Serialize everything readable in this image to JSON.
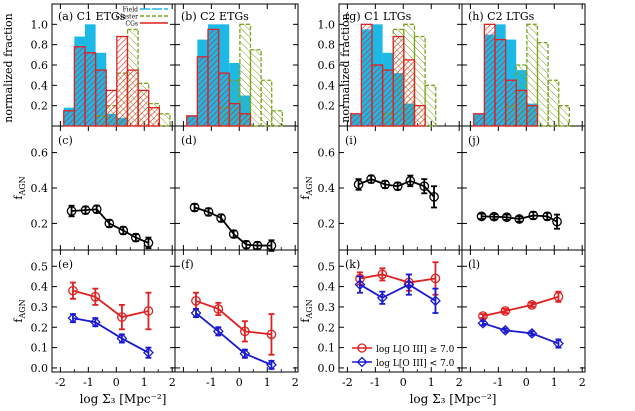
{
  "figure": {
    "left_title": "normalized fraction",
    "fagn_label": "f_AGN",
    "x_label_left": "log Σ₃  [Mpc⁻²]",
    "x_label_right": "log Σ₃  [Mpc⁻²]",
    "x_ticks": [
      "-2",
      "-1",
      "0",
      "1",
      "2"
    ],
    "hist_yticks": [
      "0.2",
      "0.4",
      "0.6",
      "0.8",
      "1.0"
    ],
    "mid_yticks": [
      "0.2",
      "0.4",
      "0.6"
    ],
    "bot_yticks": [
      "0.0",
      "0.1",
      "0.2",
      "0.3",
      "0.4",
      "0.5"
    ],
    "colors": {
      "field": "#1cb8e6",
      "cluster": "#7aa31c",
      "cgs": "#e02020",
      "red": "#e02020",
      "blue": "#1a1ad0",
      "black": "#000000"
    },
    "legend_hist": {
      "field": "Field",
      "cluster": "Cluster",
      "cgs": "CGs"
    },
    "legend_agn": {
      "high": "log L[O III] ≥ 7.0",
      "low": "log L[O III] < 7.0"
    }
  },
  "chart_data": [
    {
      "panel": "a",
      "label": "(a) C1 ETGs",
      "type": "bar",
      "bin_edges": [
        -1.88,
        -1.5,
        -1.12,
        -0.74,
        -0.36,
        0.02,
        0.4,
        0.78,
        1.16,
        1.54,
        1.92
      ],
      "series": [
        {
          "name": "Field",
          "values": [
            0.18,
            0.88,
            1.0,
            0.72,
            0.12,
            0.08,
            0.0,
            0.0,
            0.0,
            0.0
          ]
        },
        {
          "name": "Cluster",
          "values": [
            0.0,
            0.0,
            0.0,
            0.1,
            0.2,
            0.52,
            0.95,
            0.42,
            0.22,
            0.12
          ]
        },
        {
          "name": "CGs",
          "values": [
            0.15,
            0.78,
            0.72,
            0.55,
            0.35,
            0.88,
            0.55,
            0.35,
            0.18,
            0.0
          ]
        }
      ],
      "ylim": [
        0,
        1.2
      ]
    },
    {
      "panel": "b",
      "label": "(b) C2 ETGs",
      "type": "bar",
      "bin_edges": [
        -1.88,
        -1.5,
        -1.12,
        -0.74,
        -0.36,
        0.02,
        0.4,
        0.78,
        1.16,
        1.54,
        1.92
      ],
      "series": [
        {
          "name": "Field",
          "values": [
            0.1,
            0.85,
            1.0,
            1.0,
            0.62,
            0.3,
            0.0,
            0.0,
            0.0,
            0.0
          ]
        },
        {
          "name": "Cluster",
          "values": [
            0.0,
            0.0,
            0.0,
            0.18,
            0.45,
            1.0,
            0.75,
            0.45,
            0.15,
            0.0
          ]
        },
        {
          "name": "CGs",
          "values": [
            0.1,
            0.68,
            0.95,
            0.52,
            0.22,
            0.12,
            0.0,
            0.0,
            0.0,
            0.0
          ]
        }
      ],
      "ylim": [
        0,
        1.2
      ]
    },
    {
      "panel": "g",
      "label": "(g) C1 LTGs",
      "type": "bar",
      "bin_edges": [
        -1.88,
        -1.5,
        -1.12,
        -0.74,
        -0.36,
        0.02,
        0.4,
        0.78,
        1.16,
        1.54,
        1.92
      ],
      "series": [
        {
          "name": "Field",
          "values": [
            0.12,
            0.95,
            1.0,
            0.72,
            0.52,
            0.22,
            0.0,
            0.0,
            0.0,
            0.0
          ]
        },
        {
          "name": "Cluster",
          "values": [
            0.0,
            0.0,
            0.0,
            0.12,
            0.95,
            1.0,
            0.88,
            0.4,
            0.0,
            0.0
          ]
        },
        {
          "name": "CGs",
          "values": [
            0.12,
            1.0,
            0.6,
            0.55,
            0.88,
            0.65,
            0.2,
            0.0,
            0.0,
            0.0
          ]
        }
      ],
      "ylim": [
        0,
        1.2
      ]
    },
    {
      "panel": "h",
      "label": "(h) C2 LTGs",
      "type": "bar",
      "bin_edges": [
        -1.88,
        -1.5,
        -1.12,
        -0.74,
        -0.36,
        0.02,
        0.4,
        0.78,
        1.16,
        1.54,
        1.92
      ],
      "series": [
        {
          "name": "Field",
          "values": [
            0.12,
            0.9,
            1.0,
            0.85,
            0.55,
            0.22,
            0.0,
            0.0,
            0.0,
            0.0
          ]
        },
        {
          "name": "Cluster",
          "values": [
            0.0,
            0.0,
            0.0,
            0.2,
            0.6,
            1.0,
            0.82,
            0.45,
            0.2,
            0.0
          ]
        },
        {
          "name": "CGs",
          "values": [
            0.12,
            1.0,
            0.85,
            0.45,
            0.35,
            0.2,
            0.0,
            0.0,
            0.0,
            0.0
          ]
        }
      ],
      "ylim": [
        0,
        1.2
      ]
    },
    {
      "panel": "c",
      "label": "(c)",
      "type": "line",
      "ylim": [
        0.05,
        0.75
      ],
      "series": [
        {
          "color": "black",
          "marker": "circle",
          "x": [
            -1.6,
            -1.1,
            -0.7,
            -0.25,
            0.25,
            0.7,
            1.15
          ],
          "y": [
            0.27,
            0.275,
            0.28,
            0.2,
            0.16,
            0.12,
            0.09
          ],
          "err": [
            0.03,
            0.02,
            0.02,
            0.02,
            0.02,
            0.02,
            0.03
          ],
          "open_last": true
        }
      ]
    },
    {
      "panel": "d",
      "label": "(d)",
      "type": "line",
      "ylim": [
        0.05,
        0.75
      ],
      "series": [
        {
          "color": "black",
          "marker": "circle",
          "x": [
            -1.6,
            -1.1,
            -0.65,
            -0.2,
            0.25,
            0.65,
            1.15
          ],
          "y": [
            0.29,
            0.265,
            0.23,
            0.14,
            0.08,
            0.075,
            0.075
          ],
          "err": [
            0.02,
            0.02,
            0.02,
            0.02,
            0.02,
            0.02,
            0.03
          ],
          "open_last": true
        }
      ]
    },
    {
      "panel": "i",
      "label": "(i)",
      "type": "line",
      "ylim": [
        0.05,
        0.75
      ],
      "series": [
        {
          "color": "black",
          "marker": "circle",
          "x": [
            -1.6,
            -1.15,
            -0.65,
            -0.2,
            0.25,
            0.75,
            1.1
          ],
          "y": [
            0.42,
            0.45,
            0.42,
            0.41,
            0.44,
            0.41,
            0.35
          ],
          "err": [
            0.03,
            0.02,
            0.02,
            0.02,
            0.03,
            0.04,
            0.06
          ],
          "open_last": true
        }
      ]
    },
    {
      "panel": "j",
      "label": "(j)",
      "type": "line",
      "ylim": [
        0.05,
        0.75
      ],
      "series": [
        {
          "color": "black",
          "marker": "circle",
          "x": [
            -1.6,
            -1.15,
            -0.7,
            -0.25,
            0.25,
            0.75,
            1.1
          ],
          "y": [
            0.24,
            0.238,
            0.235,
            0.225,
            0.245,
            0.24,
            0.21
          ],
          "err": [
            0.015,
            0.015,
            0.015,
            0.015,
            0.02,
            0.02,
            0.04
          ],
          "open_last": true
        }
      ]
    },
    {
      "panel": "e",
      "label": "(e)",
      "type": "line",
      "ylim": [
        -0.02,
        0.58
      ],
      "series": [
        {
          "color": "red",
          "marker": "circle",
          "x": [
            -1.55,
            -0.75,
            0.2,
            1.15
          ],
          "y": [
            0.38,
            0.35,
            0.25,
            0.28
          ],
          "err": [
            0.04,
            0.04,
            0.06,
            0.09
          ],
          "open_last": true
        },
        {
          "color": "blue",
          "marker": "diamond",
          "x": [
            -1.55,
            -0.75,
            0.2,
            1.15
          ],
          "y": [
            0.245,
            0.225,
            0.145,
            0.075
          ],
          "err": [
            0.02,
            0.02,
            0.02,
            0.025
          ],
          "open_last": false
        }
      ]
    },
    {
      "panel": "f",
      "label": "(f)",
      "type": "line",
      "ylim": [
        -0.02,
        0.58
      ],
      "series": [
        {
          "color": "red",
          "marker": "circle",
          "x": [
            -1.55,
            -0.75,
            0.2,
            1.15
          ],
          "y": [
            0.33,
            0.29,
            0.18,
            0.165
          ],
          "err": [
            0.04,
            0.03,
            0.05,
            0.1
          ],
          "open_last": true
        },
        {
          "color": "blue",
          "marker": "diamond",
          "x": [
            -1.55,
            -0.75,
            0.2,
            1.15
          ],
          "y": [
            0.27,
            0.18,
            0.07,
            0.015
          ],
          "err": [
            0.02,
            0.02,
            0.02,
            0.02
          ],
          "open_last": false
        }
      ]
    },
    {
      "panel": "k",
      "label": "(k)",
      "type": "line",
      "ylim": [
        -0.02,
        0.58
      ],
      "series": [
        {
          "color": "red",
          "marker": "circle",
          "x": [
            -1.55,
            -0.75,
            0.2,
            1.15
          ],
          "y": [
            0.44,
            0.46,
            0.42,
            0.44
          ],
          "err": [
            0.03,
            0.03,
            0.04,
            0.08
          ],
          "open_last": true
        },
        {
          "color": "blue",
          "marker": "diamond",
          "x": [
            -1.55,
            -0.75,
            0.2,
            1.15
          ],
          "y": [
            0.41,
            0.345,
            0.41,
            0.33
          ],
          "err": [
            0.04,
            0.03,
            0.05,
            0.06
          ],
          "open_last": false
        }
      ]
    },
    {
      "panel": "l",
      "label": "(l)",
      "type": "line",
      "ylim": [
        -0.02,
        0.58
      ],
      "series": [
        {
          "color": "red",
          "marker": "circle",
          "x": [
            -1.55,
            -0.75,
            0.2,
            1.15
          ],
          "y": [
            0.255,
            0.28,
            0.31,
            0.35
          ],
          "err": [
            0.01,
            0.01,
            0.01,
            0.025
          ],
          "open_last": true
        },
        {
          "color": "blue",
          "marker": "diamond",
          "x": [
            -1.55,
            -0.75,
            0.2,
            1.15
          ],
          "y": [
            0.22,
            0.185,
            0.17,
            0.12
          ],
          "err": [
            0.01,
            0.01,
            0.01,
            0.02
          ],
          "open_last": false
        }
      ]
    }
  ]
}
